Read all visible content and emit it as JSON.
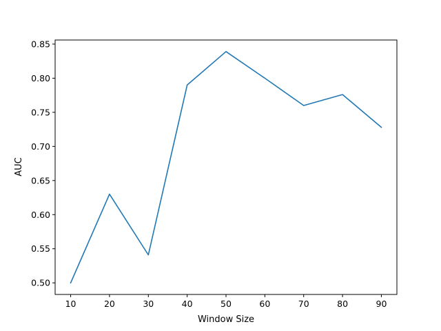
{
  "chart_data": {
    "type": "line",
    "title": "",
    "xlabel": "Window Size",
    "ylabel": "AUC",
    "x": [
      10,
      20,
      30,
      40,
      50,
      60,
      70,
      80,
      90
    ],
    "series": [
      {
        "values": [
          0.5,
          0.63,
          0.541,
          0.79,
          0.839,
          0.8,
          0.76,
          0.776,
          0.728
        ],
        "color": "#1f77b4"
      }
    ],
    "xlim": [
      6,
      94
    ],
    "ylim": [
      0.483,
      0.856
    ],
    "xticks": [
      10,
      20,
      30,
      40,
      50,
      60,
      70,
      80,
      90
    ],
    "xtick_labels": [
      "10",
      "20",
      "30",
      "40",
      "50",
      "60",
      "70",
      "80",
      "90"
    ],
    "yticks": [
      0.5,
      0.55,
      0.6,
      0.65,
      0.7,
      0.75,
      0.8,
      0.85
    ],
    "ytick_labels": [
      "0.50",
      "0.55",
      "0.60",
      "0.65",
      "0.70",
      "0.75",
      "0.80",
      "0.85"
    ],
    "grid": false,
    "legend": "none"
  }
}
